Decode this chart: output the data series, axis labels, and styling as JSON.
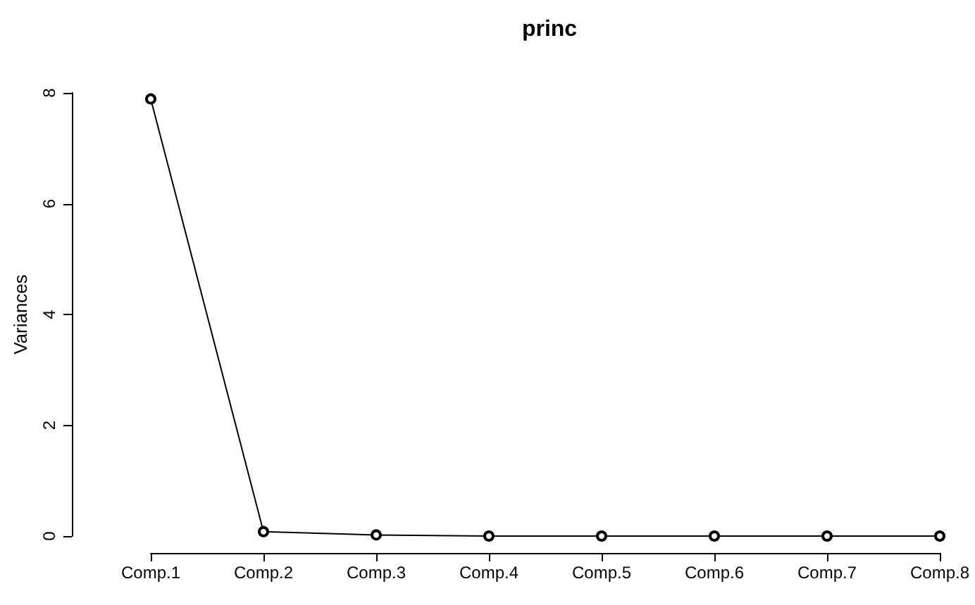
{
  "chart_data": {
    "type": "line",
    "title": "princ",
    "ylabel": "Variances",
    "categories": [
      "Comp.1",
      "Comp.2",
      "Comp.3",
      "Comp.4",
      "Comp.5",
      "Comp.6",
      "Comp.7",
      "Comp.8"
    ],
    "values": [
      7.89,
      0.08,
      0.02,
      0.0,
      0.0,
      0.0,
      0.0,
      0.0
    ],
    "color": "#000000",
    "marker": "circle",
    "line_style": "solid",
    "grid": false,
    "ylim": [
      0,
      8
    ],
    "yticks": [
      0,
      2,
      4,
      6,
      8
    ]
  }
}
